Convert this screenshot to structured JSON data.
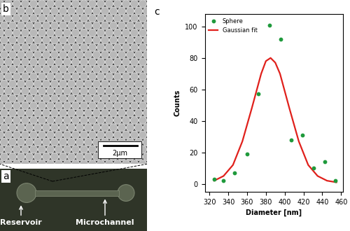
{
  "chart_data": {
    "type": "scatter",
    "x_label": "Diameter [nm]",
    "y_label": "Counts",
    "xlim": [
      315,
      462
    ],
    "xticks": [
      320,
      340,
      360,
      380,
      400,
      420,
      440,
      460
    ],
    "ylim": [
      -5,
      108
    ],
    "yticks": [
      0,
      20,
      40,
      60,
      80,
      100
    ],
    "grid": false,
    "legend": "upper left",
    "series": [
      {
        "name": "Sphere",
        "type": "scatter",
        "color": "#1f9a3c",
        "marker": "circle",
        "x": [
          325,
          335,
          347,
          360,
          372,
          384,
          396,
          407,
          419,
          431,
          443,
          454
        ],
        "values": [
          3,
          2,
          7,
          19,
          57,
          101,
          92,
          28,
          31,
          10,
          14,
          2
        ]
      },
      {
        "name": "Gaussian fit",
        "type": "line",
        "color": "#e0201b",
        "line_style": "solid",
        "x": [
          325,
          335,
          345,
          355,
          365,
          375,
          380,
          385,
          390,
          395,
          405,
          415,
          425,
          435,
          445,
          455
        ],
        "values": [
          2,
          5,
          12,
          27,
          48,
          70,
          78,
          80,
          77,
          70,
          48,
          27,
          12,
          5,
          2,
          1
        ]
      }
    ]
  },
  "panels": {
    "b": {
      "label": "b",
      "scale_bar": "2µm"
    },
    "a": {
      "label": "a",
      "annotations": [
        "Reservoir",
        "Microchannel"
      ]
    },
    "c": {
      "label": "c"
    }
  }
}
